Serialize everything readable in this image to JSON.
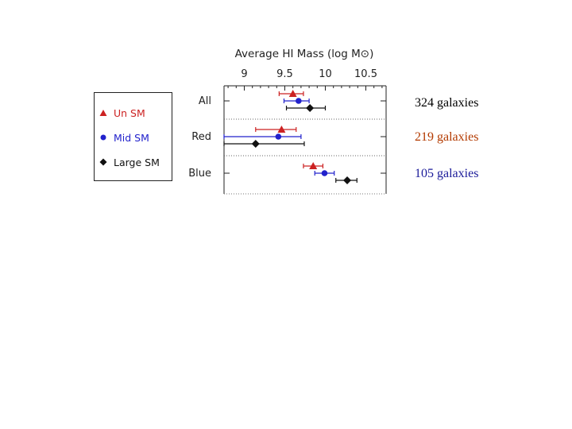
{
  "chart_data": {
    "type": "scatter",
    "title": "Average HI Mass (log M⊙)",
    "x_ticks": [
      "9",
      "9.5",
      "10",
      "10.5"
    ],
    "xlim": [
      8.75,
      10.75
    ],
    "categories": [
      "All",
      "Red",
      "Blue"
    ],
    "series": [
      {
        "name": "Un SM",
        "color": "#cc2222",
        "marker": "triangle",
        "points": [
          {
            "category": "All",
            "value": 9.6,
            "err_low": 9.43,
            "err_high": 9.73
          },
          {
            "category": "Red",
            "value": 9.46,
            "err_low": 9.14,
            "err_high": 9.64
          },
          {
            "category": "Blue",
            "value": 9.85,
            "err_low": 9.73,
            "err_high": 9.97
          }
        ]
      },
      {
        "name": "Mid SM",
        "color": "#2222cc",
        "marker": "circle",
        "points": [
          {
            "category": "All",
            "value": 9.67,
            "err_low": 9.49,
            "err_high": 9.8
          },
          {
            "category": "Red",
            "value": 9.42,
            "err_low": 8.75,
            "err_high": 9.7
          },
          {
            "category": "Blue",
            "value": 9.99,
            "err_low": 9.87,
            "err_high": 10.11
          }
        ]
      },
      {
        "name": "Large SM",
        "color": "#111111",
        "marker": "diamond",
        "points": [
          {
            "category": "All",
            "value": 9.81,
            "err_low": 9.52,
            "err_high": 10.0
          },
          {
            "category": "Red",
            "value": 9.14,
            "err_low": 8.75,
            "err_high": 9.74
          },
          {
            "category": "Blue",
            "value": 10.27,
            "err_low": 10.13,
            "err_high": 10.39
          }
        ]
      }
    ],
    "legend_position": "left"
  },
  "legend": {
    "items": [
      "Un SM",
      "Mid SM",
      "Large SM"
    ]
  },
  "annotations": [
    {
      "text": "324 galaxies",
      "color": "#000000"
    },
    {
      "text": "219 galaxies",
      "color": "#b33a00"
    },
    {
      "text": "105 galaxies",
      "color": "#1a1a99"
    }
  ]
}
